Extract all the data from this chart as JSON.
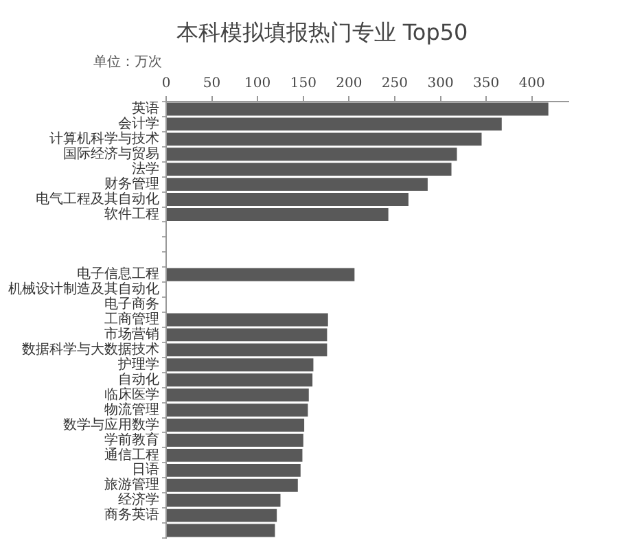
{
  "chart_data": {
    "type": "bar",
    "orientation": "horizontal",
    "title": "本科模拟填报热门专业 Top50",
    "subtitle": "单位：万次",
    "categories": [
      "英语",
      "会计学",
      "计算机科学与技术",
      "国际经济与贸易",
      "法学",
      "财务管理",
      "电气工程及其自动化",
      "软件工程",
      null,
      null,
      null,
      "电子信息工程",
      "机械设计制造及其自动化",
      "电子商务",
      "工商管理",
      "市场营销",
      "数据科学与大数据技术",
      "护理学",
      "自动化",
      "临床医学",
      "物流管理",
      "数学与应用数学",
      "学前教育",
      "通信工程",
      "日语",
      "旅游管理",
      "经济学",
      "商务英语",
      null
    ],
    "values": [
      418,
      367,
      345,
      318,
      312,
      286,
      265,
      243,
      null,
      null,
      null,
      206,
      null,
      null,
      177,
      176,
      176,
      161,
      160,
      156,
      155,
      151,
      150,
      149,
      147,
      144,
      125,
      121,
      119
    ],
    "color": "#595959",
    "xlim": [
      0,
      440
    ],
    "xticks": [
      0,
      50,
      100,
      150,
      200,
      250,
      300,
      350,
      400
    ],
    "grid": false,
    "legend": false
  }
}
